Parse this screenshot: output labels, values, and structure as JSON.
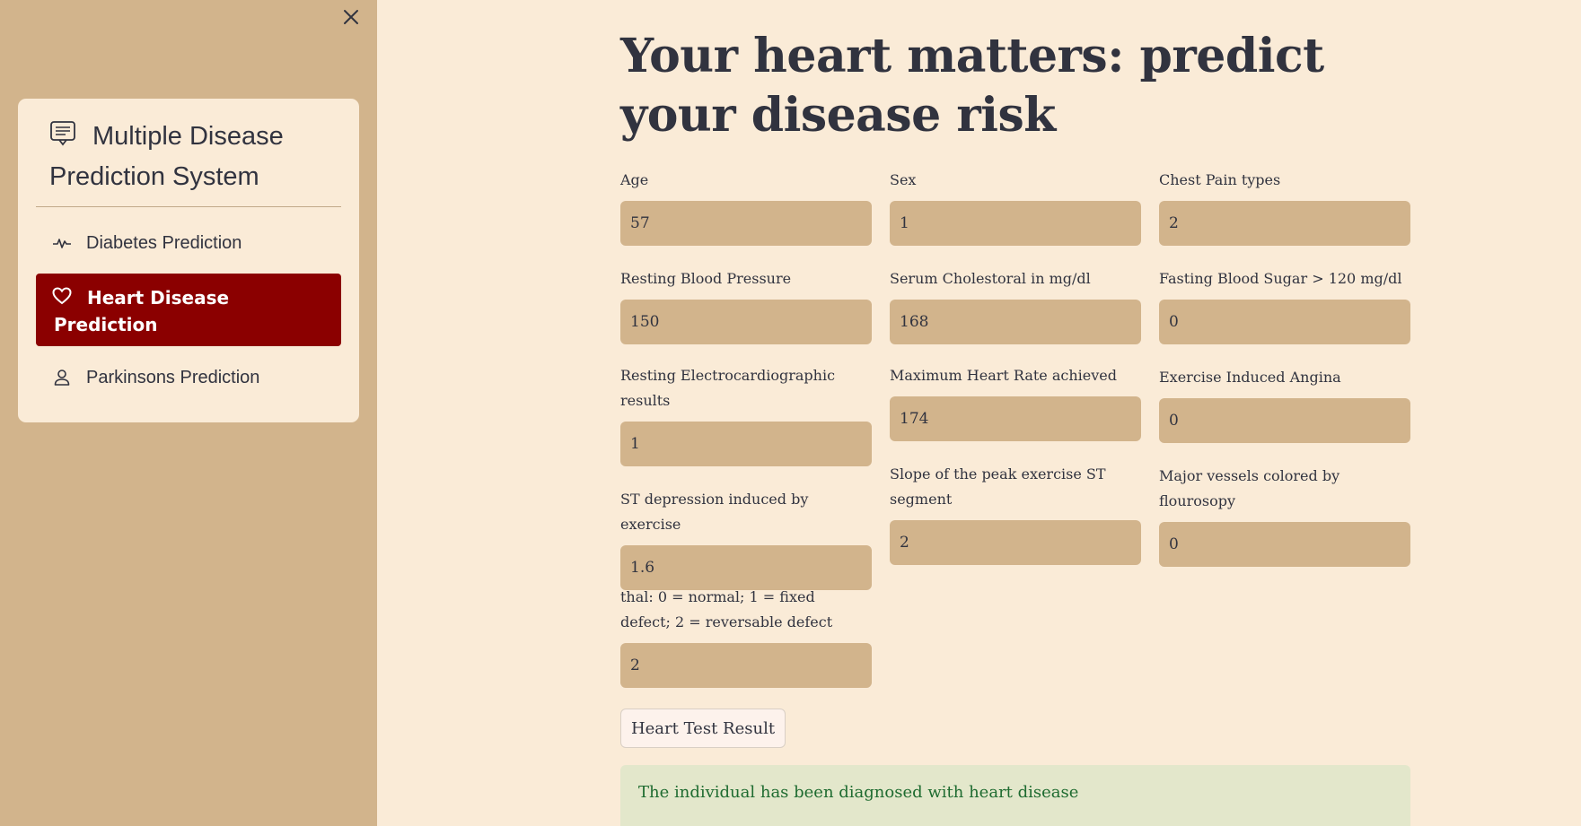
{
  "sidebar": {
    "menu_title": "Multiple Disease Prediction System",
    "items": [
      {
        "label": "Diabetes Prediction",
        "icon": "activity-icon",
        "active": false
      },
      {
        "label": "Heart Disease Prediction",
        "icon": "heart-icon",
        "active": true
      },
      {
        "label": "Parkinsons Prediction",
        "icon": "person-icon",
        "active": false
      }
    ]
  },
  "main": {
    "title": "Your heart matters: predict your disease risk",
    "fields": [
      {
        "label": "Age",
        "value": "57"
      },
      {
        "label": "Sex",
        "value": "1"
      },
      {
        "label": "Chest Pain types",
        "value": "2"
      },
      {
        "label": "Resting Blood Pressure",
        "value": "150"
      },
      {
        "label": "Serum Cholestoral in mg/dl",
        "value": "168"
      },
      {
        "label": "Fasting Blood Sugar > 120 mg/dl",
        "value": "0"
      },
      {
        "label": "Resting Electrocardiographic results",
        "value": "1"
      },
      {
        "label": "Maximum Heart Rate achieved",
        "value": "174"
      },
      {
        "label": "Exercise Induced Angina",
        "value": "0"
      },
      {
        "label": "ST depression induced by exercise",
        "value": "1.6"
      },
      {
        "label": "Slope of the peak exercise ST segment",
        "value": "2"
      },
      {
        "label": "Major vessels colored by flourosopy",
        "value": "0"
      },
      {
        "label": "thal: 0 = normal; 1 = fixed defect; 2 = reversable defect",
        "value": "2"
      }
    ],
    "submit_label": "Heart Test Result",
    "result_text": "The individual has been diagnosed with heart disease"
  },
  "colors": {
    "page_background": "#faebd7",
    "sidebar_background": "#d2b48c",
    "input_background": "#d2b48c",
    "active_nav": "#8b0000",
    "result_background": "#e3e7cb",
    "result_text": "#1e6b30",
    "text": "#31333f"
  }
}
